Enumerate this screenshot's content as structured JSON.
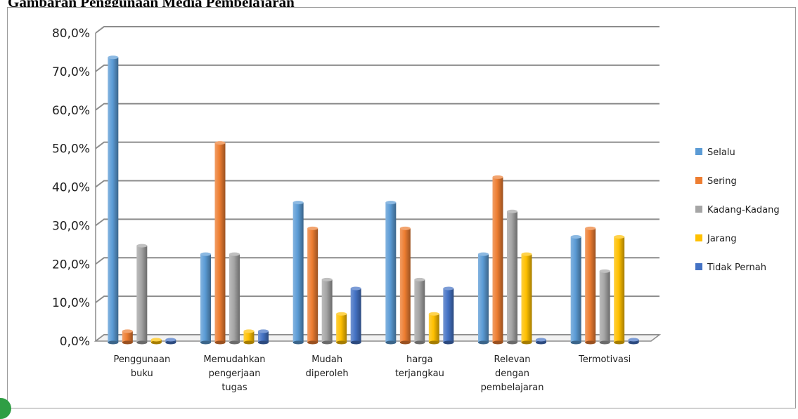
{
  "document": {
    "title": "Gambaran Penggunaan Media Pembelajaran"
  },
  "chart_data": {
    "type": "bar",
    "title": "",
    "xlabel": "",
    "ylabel": "",
    "ylim": [
      0,
      80
    ],
    "y_tick_format": "percent_one_decimal_comma",
    "y_ticks": [
      "0,0%",
      "10,0%",
      "20,0%",
      "30,0%",
      "40,0%",
      "50,0%",
      "60,0%",
      "70,0%",
      "80,0%"
    ],
    "grid": true,
    "legend_position": "right",
    "categories": [
      [
        "Penggunaan",
        "buku"
      ],
      [
        "Memudahkan",
        "pengerjaan",
        "tugas"
      ],
      [
        "Mudah",
        "diperoleh"
      ],
      [
        "harga",
        "terjangkau"
      ],
      [
        "Relevan",
        "dengan",
        "pembelajaran"
      ],
      [
        "Termotivasi"
      ]
    ],
    "series": [
      {
        "name": "Selalu",
        "color": "#5b9bd5",
        "values": [
          73.3,
          22.2,
          35.6,
          35.6,
          22.2,
          26.7
        ]
      },
      {
        "name": "Sering",
        "color": "#ed7d31",
        "values": [
          2.2,
          51.1,
          28.9,
          28.9,
          42.2,
          28.9
        ]
      },
      {
        "name": "Kadang-Kadang",
        "color": "#a5a5a5",
        "values": [
          24.4,
          22.2,
          15.6,
          15.6,
          33.3,
          17.8
        ]
      },
      {
        "name": "Jarang",
        "color": "#ffc000",
        "values": [
          0.0,
          2.2,
          6.7,
          6.7,
          22.2,
          26.7
        ]
      },
      {
        "name": "Tidak Pernah",
        "color": "#4472c4",
        "values": [
          0.0,
          2.2,
          13.3,
          13.3,
          0.0,
          0.0
        ]
      }
    ]
  }
}
